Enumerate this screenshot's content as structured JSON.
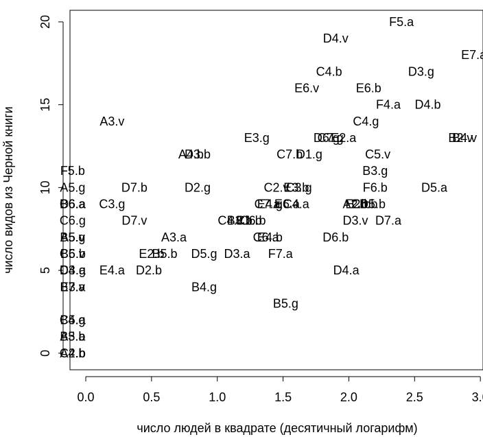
{
  "chart_data": {
    "type": "scatter",
    "title": "",
    "xlabel": "число людей в квадрате (десятичный логарифм)",
    "ylabel": "число видов из Черной книги",
    "xlim": [
      -0.12,
      3.02
    ],
    "ylim": [
      -1,
      20.7
    ],
    "x_ticks": [
      "0.0",
      "0.5",
      "1.0",
      "1.5",
      "2.0",
      "2.5",
      "3.0"
    ],
    "y_ticks": [
      "0",
      "5",
      "10",
      "15",
      "20"
    ],
    "points": [
      {
        "label": "F5.a",
        "x": 2.4,
        "y": 20
      },
      {
        "label": "D4.v",
        "x": 1.9,
        "y": 19
      },
      {
        "label": "E7.a",
        "x": 2.95,
        "y": 18
      },
      {
        "label": "C4.b",
        "x": 1.85,
        "y": 17
      },
      {
        "label": "D3.g",
        "x": 2.55,
        "y": 17
      },
      {
        "label": "E6.v",
        "x": 1.68,
        "y": 16
      },
      {
        "label": "E6.b",
        "x": 2.15,
        "y": 16
      },
      {
        "label": "F4.a",
        "x": 2.3,
        "y": 15
      },
      {
        "label": "D4.b",
        "x": 2.6,
        "y": 15
      },
      {
        "label": "A3.v",
        "x": 0.2,
        "y": 14
      },
      {
        "label": "C4.g",
        "x": 2.13,
        "y": 14
      },
      {
        "label": "E3.g",
        "x": 1.3,
        "y": 13
      },
      {
        "label": "D6.g",
        "x": 1.83,
        "y": 13
      },
      {
        "label": "C7.g",
        "x": 1.86,
        "y": 13
      },
      {
        "label": "E2.a",
        "x": 1.96,
        "y": 13
      },
      {
        "label": "B2.v",
        "x": 2.85,
        "y": 13
      },
      {
        "label": "B4.v",
        "x": 2.88,
        "y": 13
      },
      {
        "label": "A4.b",
        "x": 0.8,
        "y": 12
      },
      {
        "label": "D3.b",
        "x": 0.85,
        "y": 12
      },
      {
        "label": "C7.b",
        "x": 1.55,
        "y": 12
      },
      {
        "label": "D1.g",
        "x": 1.7,
        "y": 12
      },
      {
        "label": "C5.v",
        "x": 2.22,
        "y": 12
      },
      {
        "label": "F5.b",
        "x": -0.1,
        "y": 11
      },
      {
        "label": "B3.g",
        "x": 2.2,
        "y": 11
      },
      {
        "label": "A5.g",
        "x": -0.1,
        "y": 10
      },
      {
        "label": "D7.b",
        "x": 0.37,
        "y": 10
      },
      {
        "label": "D2.g",
        "x": 0.85,
        "y": 10
      },
      {
        "label": "C2.v",
        "x": 1.45,
        "y": 10
      },
      {
        "label": "E3.b",
        "x": 1.6,
        "y": 10
      },
      {
        "label": "C3.g",
        "x": 1.62,
        "y": 10
      },
      {
        "label": "F6.b",
        "x": 2.2,
        "y": 10
      },
      {
        "label": "D5.a",
        "x": 2.65,
        "y": 10
      },
      {
        "label": "B6.a",
        "x": -0.1,
        "y": 9
      },
      {
        "label": "C6.a",
        "x": -0.1,
        "y": 9
      },
      {
        "label": "D6.a",
        "x": -0.1,
        "y": 9
      },
      {
        "label": "C3.g",
        "x": 0.2,
        "y": 9
      },
      {
        "label": "E4.g",
        "x": 1.4,
        "y": 9
      },
      {
        "label": "C7.a",
        "x": 1.38,
        "y": 9
      },
      {
        "label": "E6.a",
        "x": 1.53,
        "y": 9
      },
      {
        "label": "C4.a",
        "x": 1.6,
        "y": 9
      },
      {
        "label": "A2.b",
        "x": 2.05,
        "y": 9
      },
      {
        "label": "E2.b",
        "x": 2.07,
        "y": 9
      },
      {
        "label": "C6.b",
        "x": 2.12,
        "y": 9
      },
      {
        "label": "D5.b",
        "x": 2.18,
        "y": 9
      },
      {
        "label": "C6.g",
        "x": -0.1,
        "y": 8
      },
      {
        "label": "D7.v",
        "x": 0.37,
        "y": 8
      },
      {
        "label": "C4.v",
        "x": 1.1,
        "y": 8
      },
      {
        "label": "B3.b",
        "x": 1.17,
        "y": 8
      },
      {
        "label": "C1.b",
        "x": 1.24,
        "y": 8
      },
      {
        "label": "C6.b",
        "x": 1.27,
        "y": 8
      },
      {
        "label": "D3.v",
        "x": 2.05,
        "y": 8
      },
      {
        "label": "D7.a",
        "x": 2.3,
        "y": 8
      },
      {
        "label": "A5.v",
        "x": -0.1,
        "y": 7
      },
      {
        "label": "B5.g",
        "x": -0.1,
        "y": 7
      },
      {
        "label": "A3.a",
        "x": 0.67,
        "y": 7
      },
      {
        "label": "C6.a",
        "x": 1.37,
        "y": 7
      },
      {
        "label": "E4.b",
        "x": 1.4,
        "y": 7
      },
      {
        "label": "D6.b",
        "x": 1.9,
        "y": 7
      },
      {
        "label": "B6.v",
        "x": -0.1,
        "y": 6
      },
      {
        "label": "C5.b",
        "x": -0.1,
        "y": 6
      },
      {
        "label": "E2.b",
        "x": 0.5,
        "y": 6
      },
      {
        "label": "B5.b",
        "x": 0.6,
        "y": 6
      },
      {
        "label": "D5.g",
        "x": 0.9,
        "y": 6
      },
      {
        "label": "D3.a",
        "x": 1.15,
        "y": 6
      },
      {
        "label": "F7.a",
        "x": 1.48,
        "y": 6
      },
      {
        "label": "C4.g",
        "x": -0.1,
        "y": 5
      },
      {
        "label": "D3.a",
        "x": -0.1,
        "y": 5
      },
      {
        "label": "E4.a",
        "x": 0.2,
        "y": 5
      },
      {
        "label": "D2.b",
        "x": 0.48,
        "y": 5
      },
      {
        "label": "D4.a",
        "x": 1.98,
        "y": 5
      },
      {
        "label": "B7.a",
        "x": -0.1,
        "y": 4
      },
      {
        "label": "E3.v",
        "x": -0.1,
        "y": 4
      },
      {
        "label": "B4.g",
        "x": 0.9,
        "y": 4
      },
      {
        "label": "B5.g",
        "x": 1.52,
        "y": 3
      },
      {
        "label": "B4.g",
        "x": -0.1,
        "y": 2
      },
      {
        "label": "C5.a",
        "x": -0.1,
        "y": 2
      },
      {
        "label": "B3.a",
        "x": -0.1,
        "y": 1
      },
      {
        "label": "A5.b",
        "x": -0.1,
        "y": 1
      },
      {
        "label": "C2.b",
        "x": -0.1,
        "y": 0
      },
      {
        "label": "A4.b",
        "x": -0.1,
        "y": 0
      }
    ]
  }
}
